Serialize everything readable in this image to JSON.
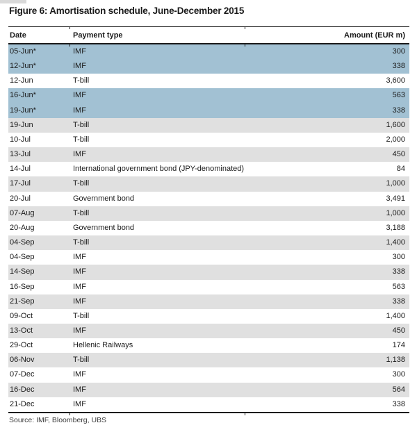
{
  "title": "Figure 6: Amortisation schedule, June-December 2015",
  "source_note": "Source: IMF, Bloomberg, UBS",
  "colors": {
    "highlight_blue": "#a2c1d3",
    "row_gray": "#e0e0e0",
    "rule_black": "#1a1a1a"
  },
  "table": {
    "columns": [
      "Date",
      "Payment type",
      "Amount (EUR m)"
    ],
    "rows": [
      {
        "date": "05-Jun*",
        "payment_type": "IMF",
        "amount": "300",
        "bg": "blue"
      },
      {
        "date": "12-Jun*",
        "payment_type": "IMF",
        "amount": "338",
        "bg": "blue"
      },
      {
        "date": "12-Jun",
        "payment_type": "T-bill",
        "amount": "3,600",
        "bg": "white"
      },
      {
        "date": "16-Jun*",
        "payment_type": "IMF",
        "amount": "563",
        "bg": "blue"
      },
      {
        "date": "19-Jun*",
        "payment_type": "IMF",
        "amount": "338",
        "bg": "blue"
      },
      {
        "date": "19-Jun",
        "payment_type": "T-bill",
        "amount": "1,600",
        "bg": "gray"
      },
      {
        "date": "10-Jul",
        "payment_type": "T-bill",
        "amount": "2,000",
        "bg": "white"
      },
      {
        "date": "13-Jul",
        "payment_type": "IMF",
        "amount": "450",
        "bg": "gray"
      },
      {
        "date": "14-Jul",
        "payment_type": "International government bond (JPY-denominated)",
        "amount": "84",
        "bg": "white"
      },
      {
        "date": "17-Jul",
        "payment_type": "T-bill",
        "amount": "1,000",
        "bg": "gray"
      },
      {
        "date": "20-Jul",
        "payment_type": "Government bond",
        "amount": "3,491",
        "bg": "white"
      },
      {
        "date": "07-Aug",
        "payment_type": "T-bill",
        "amount": "1,000",
        "bg": "gray"
      },
      {
        "date": "20-Aug",
        "payment_type": "Government bond",
        "amount": "3,188",
        "bg": "white"
      },
      {
        "date": "04-Sep",
        "payment_type": "T-bill",
        "amount": "1,400",
        "bg": "gray"
      },
      {
        "date": "04-Sep",
        "payment_type": "IMF",
        "amount": "300",
        "bg": "white"
      },
      {
        "date": "14-Sep",
        "payment_type": "IMF",
        "amount": "338",
        "bg": "gray"
      },
      {
        "date": "16-Sep",
        "payment_type": "IMF",
        "amount": "563",
        "bg": "white"
      },
      {
        "date": "21-Sep",
        "payment_type": "IMF",
        "amount": "338",
        "bg": "gray"
      },
      {
        "date": "09-Oct",
        "payment_type": "T-bill",
        "amount": "1,400",
        "bg": "white"
      },
      {
        "date": "13-Oct",
        "payment_type": "IMF",
        "amount": "450",
        "bg": "gray"
      },
      {
        "date": "29-Oct",
        "payment_type": "Hellenic Railways",
        "amount": "174",
        "bg": "white"
      },
      {
        "date": "06-Nov",
        "payment_type": "T-bill",
        "amount": "1,138",
        "bg": "gray"
      },
      {
        "date": "07-Dec",
        "payment_type": "IMF",
        "amount": "300",
        "bg": "white"
      },
      {
        "date": "16-Dec",
        "payment_type": "IMF",
        "amount": "564",
        "bg": "gray"
      },
      {
        "date": "21-Dec",
        "payment_type": "IMF",
        "amount": "338",
        "bg": "white"
      }
    ]
  }
}
